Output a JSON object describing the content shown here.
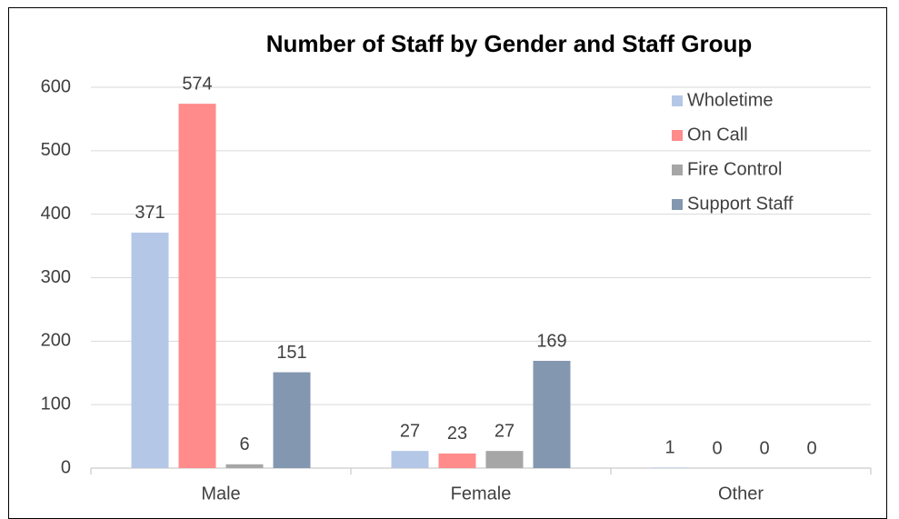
{
  "chart_data": {
    "type": "bar",
    "title": "Number of Staff by Gender and Staff Group",
    "categories": [
      "Male",
      "Female",
      "Other"
    ],
    "series": [
      {
        "name": "Wholetime",
        "color": "#b4c7e7",
        "values": [
          371,
          27,
          1
        ]
      },
      {
        "name": "On Call",
        "color": "#ff8b8b",
        "values": [
          574,
          23,
          0
        ]
      },
      {
        "name": "Fire Control",
        "color": "#a6a6a6",
        "values": [
          6,
          27,
          0
        ]
      },
      {
        "name": "Support Staff",
        "color": "#8497b0",
        "values": [
          151,
          169,
          0
        ]
      }
    ],
    "ylim": [
      0,
      600
    ],
    "yticks": [
      0,
      100,
      200,
      300,
      400,
      500,
      600
    ],
    "grid": true,
    "legend": "upper right"
  }
}
